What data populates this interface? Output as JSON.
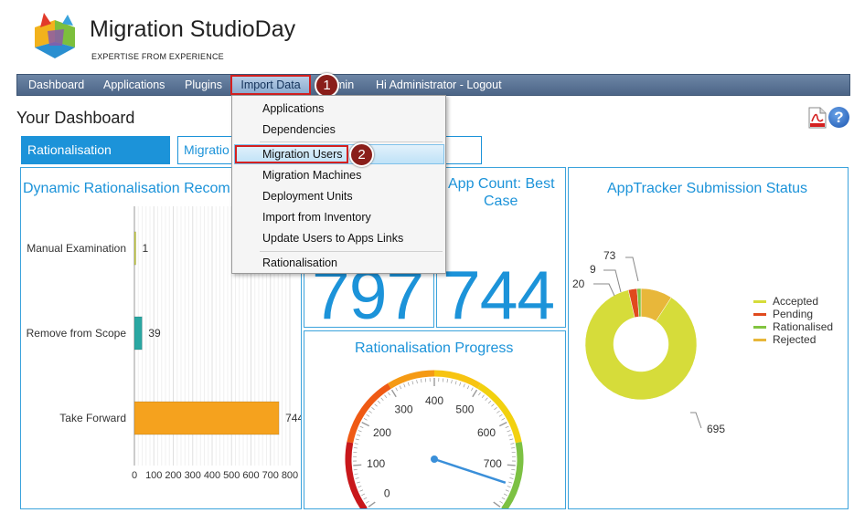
{
  "header": {
    "title": "Migration StudioDay",
    "tagline": "EXPERTISE FROM EXPERIENCE"
  },
  "nav": {
    "items": [
      "Dashboard",
      "Applications",
      "Plugins",
      "Import Data",
      "min",
      "Hi Administrator - Logout"
    ],
    "callout_1": "1",
    "callout_2": "2"
  },
  "dropdown": {
    "items": [
      "Applications",
      "Dependencies",
      "Migration Users",
      "Migration Machines",
      "Deployment Units",
      "Import from Inventory",
      "Update Users to Apps Links",
      "Rationalisation"
    ]
  },
  "page": {
    "title": "Your Dashboard",
    "help": "?"
  },
  "tabs": {
    "active": "Rationalisation",
    "second": "Migratio"
  },
  "panels": {
    "dynamic_title": "Dynamic Rationalisation Recom",
    "appcount_title_1": "App Count: Best",
    "appcount_title_2": "Case",
    "count_797": "797",
    "count_744": "744",
    "progress_title": "Rationalisation Progress",
    "tracker_title": "AppTracker Submission Status"
  },
  "colors": {
    "accent": "#1c93d9",
    "nav": "#5a7396",
    "accepted": "#d6dc3a",
    "pending": "#e04a1e",
    "rationalised": "#82c440",
    "rejected": "#e8b73a"
  },
  "chart_data": [
    {
      "type": "bar",
      "orientation": "horizontal",
      "categories": [
        "Manual Examination",
        "Remove from Scope",
        "Take Forward"
      ],
      "values": [
        1,
        39,
        744
      ],
      "data_labels": [
        "1",
        "39",
        "744"
      ],
      "xlim": [
        0,
        800
      ],
      "xticks": [
        "0",
        "100",
        "200",
        "300",
        "400",
        "500",
        "600",
        "700",
        "800"
      ],
      "bar_colors": [
        "#c9d13a",
        "#2aa7a2",
        "#f5a21e"
      ]
    },
    {
      "type": "gauge",
      "ticks": [
        "0",
        "100",
        "200",
        "300",
        "400",
        "500",
        "600",
        "700"
      ],
      "range": [
        0,
        800
      ],
      "value": 744
    },
    {
      "type": "pie",
      "donut": true,
      "legend": [
        "Accepted",
        "Pending",
        "Rationalised",
        "Rejected"
      ],
      "values": [
        695,
        20,
        9,
        73
      ],
      "data_labels": [
        "695",
        "20",
        "9",
        "73"
      ],
      "legend_position": "right"
    }
  ]
}
